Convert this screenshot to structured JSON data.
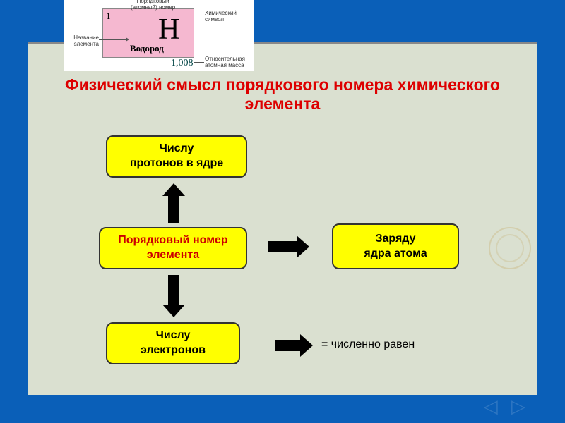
{
  "element_card": {
    "atomic_number": "1",
    "symbol": "Н",
    "name": "Водород",
    "mass": "1,008",
    "labels": {
      "atomic_num": "Порядковый\n(атомный) номер",
      "symbol": "Химический символ",
      "name": "Название элемента",
      "mass": "Относительная\nатомная масса"
    }
  },
  "title": "Физический смысл порядкового номера химического элемента",
  "boxes": {
    "protons": "Числу\nпротонов в ядре",
    "ordinal": "Порядковый номер\nэлемента",
    "charge": "Заряду\nядра атома",
    "electrons": "Числу\nэлектронов"
  },
  "legend": "= численно равен",
  "colors": {
    "bg": "#0a5fb8",
    "slide": "#dae0d0",
    "box": "#ffff00",
    "title": "#d00",
    "pink": "#f5b8d0"
  }
}
